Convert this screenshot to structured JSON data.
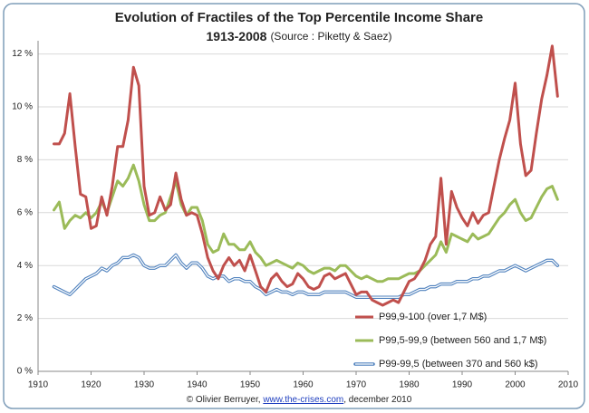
{
  "chart_data": {
    "type": "line",
    "title": "Evolution of Fractiles of the Top Percentile Income Share",
    "subtitle": "1913-2008",
    "source": "(Source : Piketty & Saez)",
    "footer_prefix": "© Olivier Berruyer, ",
    "footer_link": "www.the-crises.com",
    "footer_suffix": ", december 2010",
    "x": [
      1913,
      1914,
      1915,
      1916,
      1917,
      1918,
      1919,
      1920,
      1921,
      1922,
      1923,
      1924,
      1925,
      1926,
      1927,
      1928,
      1929,
      1930,
      1931,
      1932,
      1933,
      1934,
      1935,
      1936,
      1937,
      1938,
      1939,
      1940,
      1941,
      1942,
      1943,
      1944,
      1945,
      1946,
      1947,
      1948,
      1949,
      1950,
      1951,
      1952,
      1953,
      1954,
      1955,
      1956,
      1957,
      1958,
      1959,
      1960,
      1961,
      1962,
      1963,
      1964,
      1965,
      1966,
      1967,
      1968,
      1969,
      1970,
      1971,
      1972,
      1973,
      1974,
      1975,
      1976,
      1977,
      1978,
      1979,
      1980,
      1981,
      1982,
      1983,
      1984,
      1985,
      1986,
      1987,
      1988,
      1989,
      1990,
      1991,
      1992,
      1993,
      1994,
      1995,
      1996,
      1997,
      1998,
      1999,
      2000,
      2001,
      2002,
      2003,
      2004,
      2005,
      2006,
      2007,
      2008
    ],
    "series": [
      {
        "name": "P99,9-100 (over 1,7 M$)",
        "color": "#c0504d",
        "style": "solid",
        "values": [
          8.6,
          8.6,
          9.0,
          10.5,
          8.5,
          6.7,
          6.6,
          5.4,
          5.5,
          6.6,
          5.9,
          7.0,
          8.5,
          8.5,
          9.5,
          11.5,
          10.8,
          7.0,
          5.9,
          6.0,
          6.6,
          6.1,
          6.3,
          7.5,
          6.5,
          5.9,
          6.0,
          5.9,
          5.2,
          4.3,
          3.8,
          3.5,
          4.0,
          4.3,
          4.0,
          4.2,
          3.8,
          4.4,
          3.8,
          3.2,
          3.0,
          3.5,
          3.7,
          3.4,
          3.2,
          3.3,
          3.7,
          3.5,
          3.2,
          3.1,
          3.2,
          3.6,
          3.7,
          3.5,
          3.6,
          3.7,
          3.3,
          2.9,
          3.0,
          3.0,
          2.7,
          2.6,
          2.5,
          2.6,
          2.7,
          2.6,
          3.0,
          3.4,
          3.5,
          3.8,
          4.2,
          4.8,
          5.1,
          7.3,
          4.8,
          6.8,
          6.2,
          5.8,
          5.5,
          6.0,
          5.6,
          5.9,
          6.0,
          7.0,
          8.0,
          8.8,
          9.5,
          10.9,
          8.6,
          7.4,
          7.6,
          9.0,
          10.3,
          11.2,
          12.3,
          10.4
        ]
      },
      {
        "name": "P99,5-99,9 (between 560 and 1,7 M$)",
        "color": "#9bbb59",
        "style": "solid",
        "values": [
          6.1,
          6.4,
          5.4,
          5.7,
          5.9,
          5.8,
          6.0,
          5.8,
          6.0,
          6.4,
          6.0,
          6.6,
          7.2,
          7.0,
          7.3,
          7.8,
          7.2,
          6.3,
          5.7,
          5.7,
          5.9,
          6.0,
          6.6,
          7.2,
          6.3,
          5.9,
          6.2,
          6.2,
          5.7,
          4.8,
          4.5,
          4.6,
          5.2,
          4.8,
          4.8,
          4.6,
          4.6,
          4.9,
          4.5,
          4.3,
          4.0,
          4.1,
          4.2,
          4.1,
          4.0,
          3.9,
          4.1,
          4.0,
          3.8,
          3.7,
          3.8,
          3.9,
          3.9,
          3.8,
          4.0,
          4.0,
          3.8,
          3.6,
          3.5,
          3.6,
          3.5,
          3.4,
          3.4,
          3.5,
          3.5,
          3.5,
          3.6,
          3.7,
          3.7,
          3.8,
          4.0,
          4.2,
          4.4,
          4.9,
          4.5,
          5.2,
          5.1,
          5.0,
          4.9,
          5.2,
          5.0,
          5.1,
          5.2,
          5.5,
          5.8,
          6.0,
          6.3,
          6.5,
          6.0,
          5.7,
          5.8,
          6.2,
          6.6,
          6.9,
          7.0,
          6.5
        ]
      },
      {
        "name": "P99-99,5 (between 370 and 560 k$)",
        "color": "#4f81bd",
        "style": "outline",
        "values": [
          3.2,
          3.1,
          3.0,
          2.9,
          3.1,
          3.3,
          3.5,
          3.6,
          3.7,
          3.9,
          3.8,
          4.0,
          4.1,
          4.3,
          4.3,
          4.4,
          4.3,
          4.0,
          3.9,
          3.9,
          4.0,
          4.0,
          4.2,
          4.4,
          4.1,
          3.9,
          4.1,
          4.1,
          3.9,
          3.6,
          3.5,
          3.6,
          3.6,
          3.4,
          3.5,
          3.5,
          3.4,
          3.4,
          3.2,
          3.1,
          2.9,
          3.0,
          3.1,
          3.0,
          3.0,
          2.9,
          3.0,
          3.0,
          2.9,
          2.9,
          2.9,
          3.0,
          3.0,
          3.0,
          3.0,
          3.0,
          2.9,
          2.8,
          2.8,
          2.8,
          2.8,
          2.8,
          2.8,
          2.8,
          2.8,
          2.8,
          2.9,
          2.9,
          3.0,
          3.1,
          3.1,
          3.2,
          3.2,
          3.3,
          3.3,
          3.3,
          3.4,
          3.4,
          3.4,
          3.5,
          3.5,
          3.6,
          3.6,
          3.7,
          3.8,
          3.8,
          3.9,
          4.0,
          3.9,
          3.8,
          3.9,
          4.0,
          4.1,
          4.2,
          4.2,
          4.0
        ]
      }
    ],
    "xlim": [
      1910,
      2010
    ],
    "xticks": [
      1910,
      1920,
      1930,
      1940,
      1950,
      1960,
      1970,
      1980,
      1990,
      2000,
      2010
    ],
    "ylim": [
      0,
      12.5
    ],
    "yticks": [
      {
        "value": 0,
        "label": "0 %"
      },
      {
        "value": 2,
        "label": "2 %"
      },
      {
        "value": 4,
        "label": "4 %"
      },
      {
        "value": 6,
        "label": "6 %"
      },
      {
        "value": 8,
        "label": "8 %"
      },
      {
        "value": 10,
        "label": "10 %"
      },
      {
        "value": 12,
        "label": "12 %"
      }
    ],
    "grid": true,
    "legend": "lower right"
  }
}
